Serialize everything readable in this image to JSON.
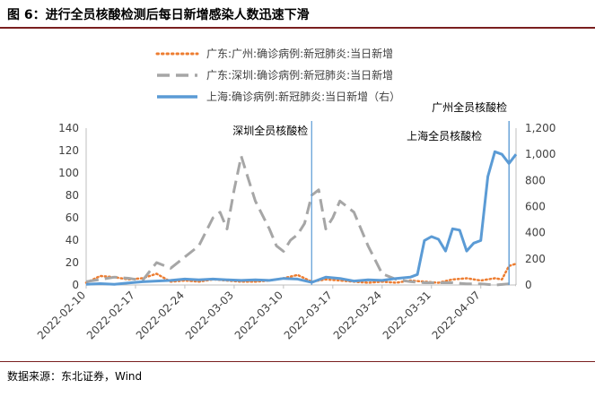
{
  "figure": {
    "title": "图 6：进行全员核酸检测后每日新增感染人数迅速下滑",
    "source": "数据来源：东北证券，Wind"
  },
  "chart_data": {
    "type": "line",
    "x_tick_labels": [
      "2022-02-10",
      "2022-02-17",
      "2022-02-24",
      "2022-03-03",
      "2022-03-10",
      "2022-03-17",
      "2022-03-24",
      "2022-03-31",
      "2022-04-07"
    ],
    "x_start": "2022-02-10",
    "x_end": "2022-04-12",
    "y_left": {
      "lim": [
        0,
        140
      ],
      "ticks": [
        0,
        20,
        40,
        60,
        80,
        100,
        120,
        140
      ]
    },
    "y_right": {
      "lim": [
        0,
        1200
      ],
      "ticks": [
        "0",
        "200",
        "400",
        "600",
        "800",
        "1,000",
        "1,200"
      ]
    },
    "grid": false,
    "legend_position": "top-center",
    "series": [
      {
        "name": "广东:广州:确诊病例:新冠肺炎:当日新增",
        "axis": "left",
        "style": "dotted",
        "color": "#ED7D31",
        "x": [
          "2022-02-10",
          "2022-02-12",
          "2022-02-14",
          "2022-02-16",
          "2022-02-18",
          "2022-02-20",
          "2022-02-22",
          "2022-02-24",
          "2022-02-26",
          "2022-02-28",
          "2022-03-02",
          "2022-03-04",
          "2022-03-06",
          "2022-03-08",
          "2022-03-10",
          "2022-03-12",
          "2022-03-14",
          "2022-03-16",
          "2022-03-18",
          "2022-03-20",
          "2022-03-22",
          "2022-03-24",
          "2022-03-26",
          "2022-03-28",
          "2022-03-30",
          "2022-04-01",
          "2022-04-03",
          "2022-04-05",
          "2022-04-07",
          "2022-04-09",
          "2022-04-10",
          "2022-04-11",
          "2022-04-12"
        ],
        "y": [
          2,
          8,
          7,
          5,
          6,
          10,
          3,
          4,
          3,
          5,
          4,
          3,
          3,
          4,
          6,
          9,
          3,
          5,
          4,
          3,
          2,
          3,
          2,
          4,
          3,
          2,
          5,
          6,
          4,
          6,
          5,
          17,
          19
        ]
      },
      {
        "name": "广东:深圳:确诊病例:新冠肺炎:当日新增",
        "axis": "left",
        "style": "dashed",
        "color": "#A6A6A6",
        "x": [
          "2022-02-10",
          "2022-02-12",
          "2022-02-14",
          "2022-02-16",
          "2022-02-18",
          "2022-02-20",
          "2022-02-22",
          "2022-02-24",
          "2022-02-26",
          "2022-02-28",
          "2022-03-01",
          "2022-03-02",
          "2022-03-03",
          "2022-03-04",
          "2022-03-05",
          "2022-03-06",
          "2022-03-08",
          "2022-03-09",
          "2022-03-10",
          "2022-03-11",
          "2022-03-12",
          "2022-03-13",
          "2022-03-14",
          "2022-03-15",
          "2022-03-16",
          "2022-03-17",
          "2022-03-18",
          "2022-03-19",
          "2022-03-20",
          "2022-03-22",
          "2022-03-24",
          "2022-03-26",
          "2022-03-28",
          "2022-03-30",
          "2022-04-01",
          "2022-04-03",
          "2022-04-05",
          "2022-04-07",
          "2022-04-09",
          "2022-04-11",
          "2022-04-12"
        ],
        "y": [
          3,
          5,
          7,
          6,
          4,
          20,
          15,
          25,
          35,
          60,
          65,
          50,
          85,
          115,
          95,
          75,
          50,
          35,
          30,
          40,
          45,
          55,
          80,
          85,
          50,
          60,
          75,
          70,
          65,
          35,
          10,
          5,
          3,
          2,
          2,
          2,
          1,
          1,
          0,
          1,
          0
        ]
      },
      {
        "name": "上海:确诊病例:新冠肺炎:当日新增（右）",
        "axis": "right",
        "style": "solid",
        "color": "#5B9BD5",
        "x": [
          "2022-02-10",
          "2022-02-12",
          "2022-02-14",
          "2022-02-16",
          "2022-02-18",
          "2022-02-20",
          "2022-02-22",
          "2022-02-24",
          "2022-02-26",
          "2022-02-28",
          "2022-03-02",
          "2022-03-04",
          "2022-03-06",
          "2022-03-08",
          "2022-03-10",
          "2022-03-12",
          "2022-03-14",
          "2022-03-16",
          "2022-03-18",
          "2022-03-20",
          "2022-03-22",
          "2022-03-24",
          "2022-03-26",
          "2022-03-28",
          "2022-03-29",
          "2022-03-30",
          "2022-03-31",
          "2022-04-01",
          "2022-04-02",
          "2022-04-03",
          "2022-04-04",
          "2022-04-05",
          "2022-04-06",
          "2022-04-07",
          "2022-04-08",
          "2022-04-09",
          "2022-04-10",
          "2022-04-11",
          "2022-04-12"
        ],
        "y": [
          5,
          10,
          5,
          15,
          25,
          30,
          35,
          45,
          40,
          45,
          40,
          35,
          40,
          35,
          50,
          45,
          20,
          60,
          50,
          30,
          40,
          35,
          50,
          60,
          80,
          340,
          370,
          350,
          260,
          430,
          420,
          260,
          320,
          340,
          830,
          1020,
          1000,
          930,
          1000
        ]
      }
    ],
    "annotations": [
      {
        "text": "深圳全员核酸检",
        "x": "2022-03-14",
        "label_row": "middle"
      },
      {
        "text": "上海全员核酸检",
        "x": "2022-04-11",
        "label_row": "bottom"
      },
      {
        "text": "广州全员核酸检",
        "x": "2022-04-11",
        "label_row": "top"
      }
    ]
  }
}
